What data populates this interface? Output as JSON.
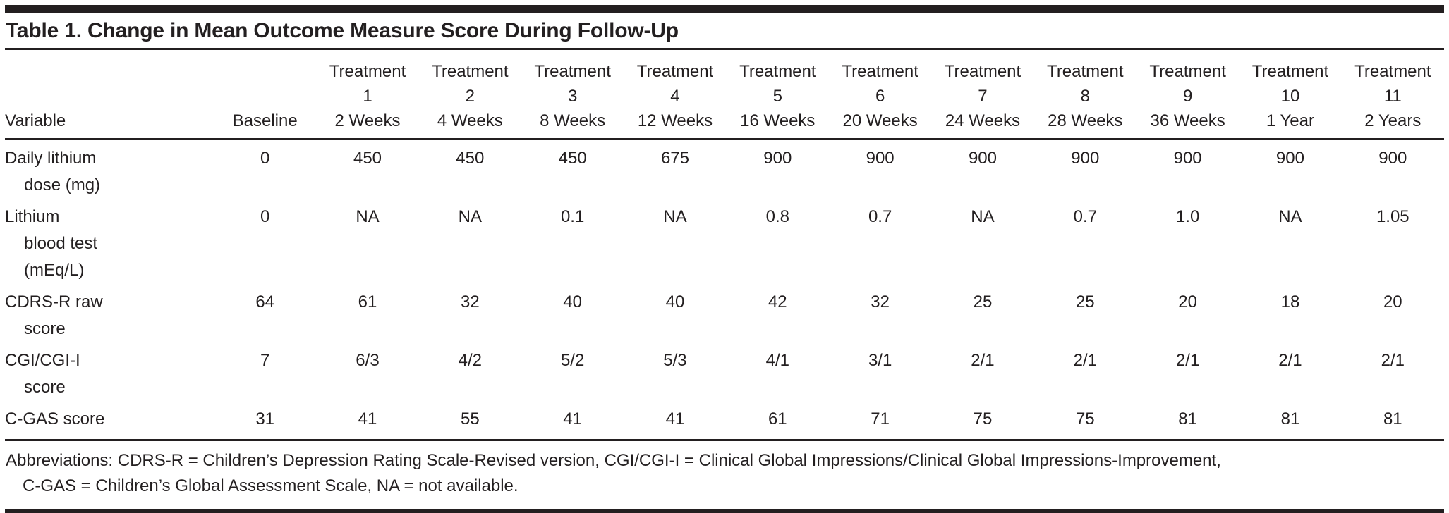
{
  "table": {
    "title": "Table 1. Change in Mean Outcome Measure Score During Follow-Up",
    "header": {
      "variable_label": "Variable",
      "baseline_label": "Baseline",
      "treatment_word": "Treatment",
      "treatments": [
        {
          "number": "1",
          "timepoint": "2 Weeks"
        },
        {
          "number": "2",
          "timepoint": "4 Weeks"
        },
        {
          "number": "3",
          "timepoint": "8 Weeks"
        },
        {
          "number": "4",
          "timepoint": "12 Weeks"
        },
        {
          "number": "5",
          "timepoint": "16 Weeks"
        },
        {
          "number": "6",
          "timepoint": "20 Weeks"
        },
        {
          "number": "7",
          "timepoint": "24 Weeks"
        },
        {
          "number": "8",
          "timepoint": "28 Weeks"
        },
        {
          "number": "9",
          "timepoint": "36 Weeks"
        },
        {
          "number": "10",
          "timepoint": "1 Year"
        },
        {
          "number": "11",
          "timepoint": "2 Years"
        }
      ]
    },
    "rows": [
      {
        "label": "Daily lithium\ndose (mg)",
        "baseline": "0",
        "values": [
          "450",
          "450",
          "450",
          "675",
          "900",
          "900",
          "900",
          "900",
          "900",
          "900",
          "900"
        ]
      },
      {
        "label": "Lithium\nblood test\n(mEq/L)",
        "baseline": "0",
        "values": [
          "NA",
          "NA",
          "0.1",
          "NA",
          "0.8",
          "0.7",
          "NA",
          "0.7",
          "1.0",
          "NA",
          "1.05"
        ]
      },
      {
        "label": "CDRS-R raw\nscore",
        "baseline": "64",
        "values": [
          "61",
          "32",
          "40",
          "40",
          "42",
          "32",
          "25",
          "25",
          "20",
          "18",
          "20"
        ]
      },
      {
        "label": "CGI/CGI-I\nscore",
        "baseline": "7",
        "values": [
          "6/3",
          "4/2",
          "5/2",
          "5/3",
          "4/1",
          "3/1",
          "2/1",
          "2/1",
          "2/1",
          "2/1",
          "2/1"
        ]
      },
      {
        "label": "C-GAS score",
        "baseline": "31",
        "values": [
          "41",
          "55",
          "41",
          "41",
          "61",
          "71",
          "75",
          "75",
          "81",
          "81",
          "81"
        ]
      }
    ],
    "footnote": {
      "line1": "Abbreviations: CDRS-R = Children’s Depression Rating Scale-Revised version, CGI/CGI-I = Clinical Global Impressions/Clinical Global Impressions-Improvement,",
      "line2": "C-GAS = Children’s Global Assessment Scale, NA = not available."
    },
    "colors": {
      "text": "#231f20",
      "rule": "#231f20",
      "background": "#ffffff"
    }
  }
}
